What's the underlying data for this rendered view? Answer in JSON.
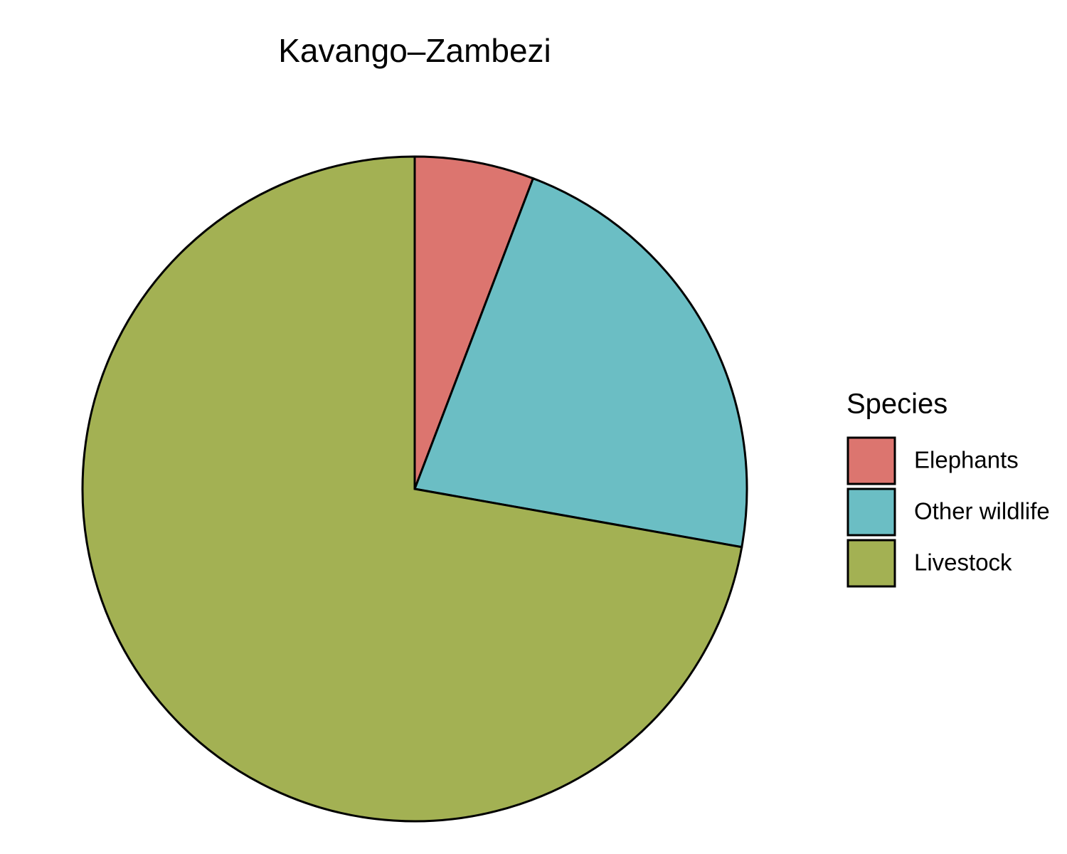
{
  "chart_data": {
    "type": "pie",
    "title": "Kavango–Zambezi",
    "legend_title": "Species",
    "categories": [
      "Elephants",
      "Other wildlife",
      "Livestock"
    ],
    "values": [
      5.8,
      22.0,
      72.2
    ],
    "colors": [
      "#dc756f",
      "#6bbec4",
      "#a3b153"
    ],
    "legend": "right"
  }
}
